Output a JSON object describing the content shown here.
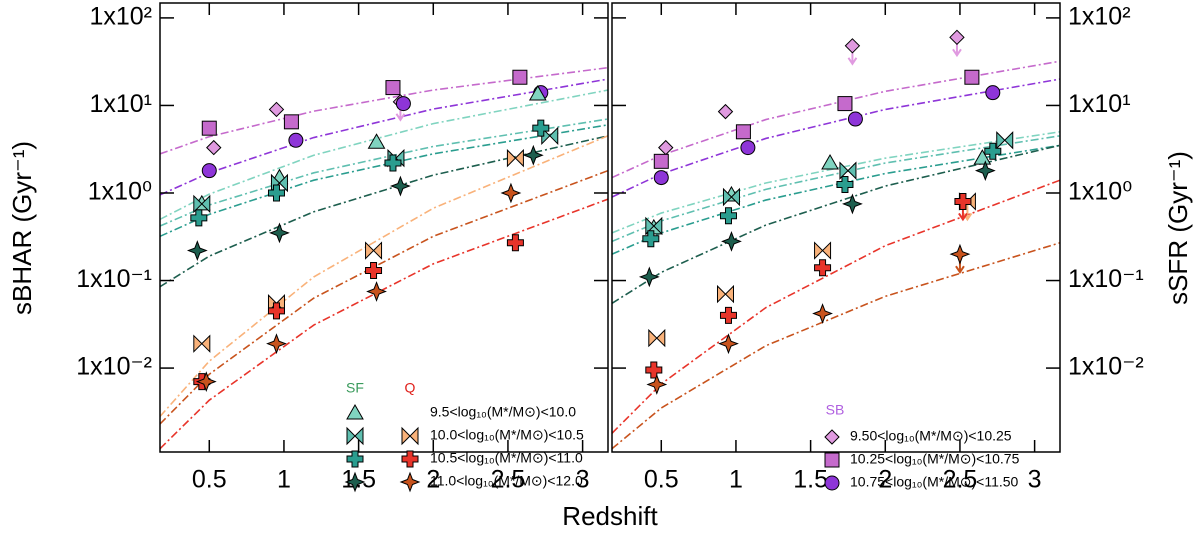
{
  "chart_data": {
    "type": "scatter",
    "xlabel": "Redshift",
    "ylabel": "sBHAR (Gyr⁻¹)",
    "y2label": "sSFR (Gyr⁻¹)",
    "xlim": [
      0.17,
      3.17
    ],
    "xticks": [
      0.5,
      1.0,
      1.5,
      2.0,
      2.5,
      3.0
    ],
    "ylog": true,
    "ylim": [
      0.0011,
      148
    ],
    "yticks": [
      {
        "value": 0.01,
        "label": "1x10⁻²"
      },
      {
        "value": 0.1,
        "label": "1x10⁻¹"
      },
      {
        "value": 1,
        "label": "1x10⁰"
      },
      {
        "value": 10,
        "label": "1x10¹"
      },
      {
        "value": 100,
        "label": "1x10²"
      }
    ],
    "y2lim": [
      0.0011,
      148
    ],
    "y2ticks": [
      {
        "value": 0.01,
        "label": "1x10⁻²"
      },
      {
        "value": 0.1,
        "label": "1x10⁻¹"
      },
      {
        "value": 1,
        "label": "1x10⁰"
      },
      {
        "value": 10,
        "label": "1x10¹"
      },
      {
        "value": 100,
        "label": "1x10²"
      }
    ],
    "legend": {
      "columns": [
        {
          "name": "SF",
          "color": "#3a9b5c"
        },
        {
          "name": "Q",
          "color": "#e0201b"
        }
      ],
      "labels": [
        "9.5<log₁₀(M*/M⊙)<10.0",
        "10.0<log₁₀(M*/M⊙)<10.5",
        "10.5<log₁₀(M*/M⊙)<11.0",
        "11.0<log₁₀(M*/M⊙)<12.0"
      ],
      "sb": {
        "name": "SB",
        "color": "#b060e0",
        "labels": [
          "9.50<log₁₀(M*/M⊙)<10.25",
          "10.25<log₁₀(M*/M⊙)<10.75",
          "10.75<log₁₀(M*/M⊙)<11.50"
        ]
      }
    },
    "panels": [
      {
        "curves_x": [
          0.17,
          0.5,
          1.2,
          2.0,
          3.17
        ],
        "curves": [
          {
            "color": "#c56acc",
            "values": [
              2.8,
              4.4,
              8.6,
              15,
              27
            ]
          },
          {
            "color": "#8e35d8",
            "values": [
              0.95,
              1.7,
              4.3,
              9.1,
              20
            ]
          },
          {
            "color": "#80d4c0",
            "values": [
              0.5,
              0.97,
              2.7,
              6.2,
              15
            ]
          },
          {
            "color": "#5fbfb0",
            "values": [
              0.42,
              0.73,
              1.7,
              3.4,
              7
            ]
          },
          {
            "color": "#2a9d8f",
            "values": [
              0.32,
              0.57,
              1.4,
              2.8,
              6
            ]
          },
          {
            "color": "#1d5e4e",
            "values": [
              0.085,
              0.19,
              0.61,
              1.6,
              4.5
            ]
          },
          {
            "color": "#f9b27a",
            "values": [
              0.0028,
              0.012,
              0.11,
              0.67,
              4.5
            ]
          },
          {
            "color": "#c8531d",
            "values": [
              0.0023,
              0.0085,
              0.063,
              0.32,
              1.8
            ]
          },
          {
            "color": "#e8342a",
            "values": [
              0.0012,
              0.0043,
              0.031,
              0.155,
              0.85
            ]
          }
        ],
        "sf": [
          {
            "marker": "triangle",
            "color": "#80d4c0",
            "x": [
              0.45,
              0.97,
              1.62,
              2.7
            ],
            "values": [
              0.75,
              1.5,
              3.8,
              13.5
            ],
            "upper_limit": [
              false,
              false,
              false,
              false
            ]
          },
          {
            "marker": "bowtie",
            "color": "#5fbfb0",
            "x": [
              0.45,
              0.97,
              1.75,
              2.78
            ],
            "values": [
              0.75,
              1.3,
              2.5,
              4.5
            ],
            "upper_limit": [
              false,
              false,
              false,
              false
            ]
          },
          {
            "marker": "cross",
            "color": "#2a9d8f",
            "x": [
              0.43,
              0.95,
              1.73,
              2.72
            ],
            "values": [
              0.52,
              1.0,
              2.2,
              5.5
            ],
            "upper_limit": [
              false,
              false,
              false,
              false
            ]
          },
          {
            "marker": "star",
            "color": "#1d5e4e",
            "x": [
              0.42,
              0.97,
              1.78,
              2.67
            ],
            "values": [
              0.22,
              0.35,
              1.2,
              2.7
            ],
            "upper_limit": [
              false,
              false,
              false,
              false
            ]
          }
        ],
        "q": [
          {
            "marker": "bowtie",
            "color": "#f9b27a",
            "x": [
              0.45,
              0.95,
              1.6,
              2.55
            ],
            "values": [
              0.019,
              0.055,
              0.22,
              2.5
            ],
            "upper_limit": [
              false,
              false,
              false,
              false
            ]
          },
          {
            "marker": "cross",
            "color": "#e8342a",
            "x": [
              0.45,
              0.95,
              1.6,
              2.55
            ],
            "values": [
              0.007,
              0.045,
              0.13,
              0.27
            ],
            "upper_limit": [
              false,
              false,
              false,
              false
            ]
          },
          {
            "marker": "star",
            "color": "#c8531d",
            "x": [
              0.48,
              0.95,
              1.62,
              2.52
            ],
            "values": [
              0.007,
              0.019,
              0.075,
              1.0
            ],
            "upper_limit": [
              false,
              false,
              false,
              false
            ]
          }
        ],
        "sb": [
          {
            "marker": "diamond",
            "color": "#e09ae0",
            "x": [
              0.53,
              0.95,
              1.78
            ],
            "values": [
              3.3,
              9,
              11
            ],
            "upper_limit": [
              false,
              false,
              true
            ]
          },
          {
            "marker": "square",
            "color": "#c56acc",
            "x": [
              0.5,
              1.05,
              1.73,
              2.58
            ],
            "values": [
              5.5,
              6.5,
              16,
              21
            ],
            "upper_limit": [
              false,
              false,
              false,
              false
            ]
          },
          {
            "marker": "circle",
            "color": "#8e35d8",
            "x": [
              0.5,
              1.08,
              1.8,
              2.72
            ],
            "values": [
              1.8,
              4.0,
              10.5,
              14
            ],
            "upper_limit": [
              false,
              false,
              false,
              false
            ]
          }
        ]
      },
      {
        "curves_x": [
          0.17,
          0.5,
          1.2,
          2.0,
          3.17
        ],
        "curves": [
          {
            "color": "#c56acc",
            "values": [
              1.5,
              2.7,
              6.9,
              14.5,
              32
            ]
          },
          {
            "color": "#8e35d8",
            "values": [
              0.9,
              1.65,
              4.2,
              9,
              20
            ]
          },
          {
            "color": "#80d4c0",
            "values": [
              0.35,
              0.59,
              1.3,
              2.5,
              5
            ]
          },
          {
            "color": "#5fbfb0",
            "values": [
              0.28,
              0.48,
              1.1,
              2.2,
              4.5
            ]
          },
          {
            "color": "#2a9d8f",
            "values": [
              0.2,
              0.35,
              0.83,
              1.67,
              3.5
            ]
          },
          {
            "color": "#1d5e4e",
            "values": [
              0.055,
              0.124,
              0.43,
              1.2,
              3.5
            ]
          },
          {
            "color": "#e8342a",
            "values": [
              0.0018,
              0.0066,
              0.049,
              0.25,
              1.4
            ]
          },
          {
            "color": "#c8531d",
            "values": [
              0.0012,
              0.0035,
              0.018,
              0.066,
              0.27
            ]
          }
        ],
        "sf": [
          {
            "marker": "triangle",
            "color": "#80d4c0",
            "x": [
              0.45,
              0.97,
              1.63,
              2.65
            ],
            "values": [
              0.4,
              0.95,
              2.2,
              2.5
            ],
            "upper_limit": [
              false,
              false,
              false,
              false
            ]
          },
          {
            "marker": "bowtie",
            "color": "#5fbfb0",
            "x": [
              0.45,
              0.97,
              1.75,
              2.8
            ],
            "values": [
              0.42,
              0.9,
              1.8,
              4.0
            ],
            "upper_limit": [
              false,
              false,
              false,
              false
            ]
          },
          {
            "marker": "cross",
            "color": "#2a9d8f",
            "x": [
              0.43,
              0.95,
              1.73,
              2.72
            ],
            "values": [
              0.3,
              0.55,
              1.25,
              3.0
            ],
            "upper_limit": [
              false,
              false,
              false,
              false
            ]
          },
          {
            "marker": "star",
            "color": "#1d5e4e",
            "x": [
              0.42,
              0.97,
              1.78,
              2.67
            ],
            "values": [
              0.11,
              0.28,
              0.75,
              1.8
            ],
            "upper_limit": [
              false,
              false,
              false,
              false
            ]
          }
        ],
        "q": [
          {
            "marker": "bowtie",
            "color": "#f9b27a",
            "x": [
              0.47,
              0.93,
              1.58,
              2.55
            ],
            "values": [
              0.022,
              0.07,
              0.22,
              0.8
            ],
            "upper_limit": [
              false,
              false,
              false,
              true
            ]
          },
          {
            "marker": "cross",
            "color": "#e8342a",
            "x": [
              0.45,
              0.95,
              1.58,
              2.52
            ],
            "values": [
              0.0095,
              0.04,
              0.14,
              0.8
            ],
            "upper_limit": [
              false,
              false,
              false,
              true
            ]
          },
          {
            "marker": "star",
            "color": "#c8531d",
            "x": [
              0.47,
              0.95,
              1.58,
              2.5
            ],
            "values": [
              0.0065,
              0.019,
              0.042,
              0.2
            ],
            "upper_limit": [
              false,
              false,
              false,
              true
            ]
          }
        ],
        "sb": [
          {
            "marker": "diamond",
            "color": "#e09ae0",
            "x": [
              0.53,
              0.93,
              1.78,
              2.48
            ],
            "values": [
              3.3,
              8.5,
              48,
              60
            ],
            "upper_limit": [
              false,
              false,
              true,
              true
            ]
          },
          {
            "marker": "square",
            "color": "#c56acc",
            "x": [
              0.5,
              1.05,
              1.73,
              2.58
            ],
            "values": [
              2.3,
              5.0,
              10.5,
              21
            ],
            "upper_limit": [
              false,
              false,
              false,
              false
            ]
          },
          {
            "marker": "circle",
            "color": "#8e35d8",
            "x": [
              0.5,
              1.08,
              1.8,
              2.72
            ],
            "values": [
              1.5,
              3.3,
              7,
              14
            ],
            "upper_limit": [
              false,
              false,
              false,
              false
            ]
          }
        ]
      }
    ]
  }
}
